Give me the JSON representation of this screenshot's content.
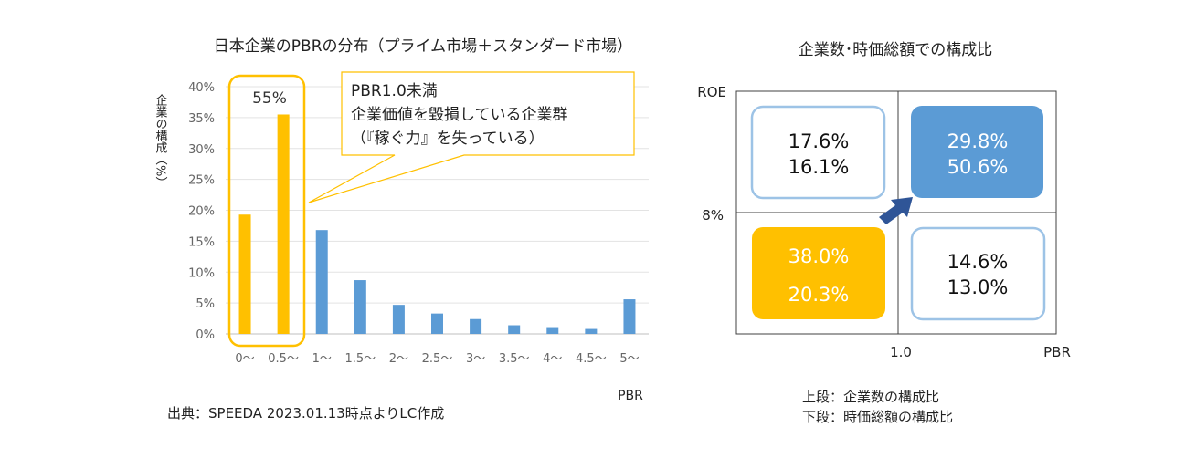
{
  "left_panel": {
    "source": "出典：SPEEDA 2023.01.13時点よりLC作成"
  },
  "right_panel": {
    "title": "企業数･時価総額での構成比",
    "y_axis_label": "ROE",
    "y_threshold_label": "8%",
    "x_threshold_label": "1.0",
    "x_axis_label": "PBR",
    "quadrants": {
      "top_left": {
        "upper": "17.6%",
        "lower": "16.1%"
      },
      "top_right": {
        "upper": "29.8%",
        "lower": "50.6%"
      },
      "bottom_left": {
        "upper": "38.0%",
        "lower": "20.3%"
      },
      "bottom_right": {
        "upper": "14.6%",
        "lower": "13.0%"
      }
    },
    "note_upper": "上段：企業数の構成比",
    "note_lower": "下段：時価総額の構成比"
  },
  "chart_data": {
    "type": "bar",
    "title": "日本企業のPBRの分布（プライム市場＋スタンダード市場）",
    "xlabel": "PBR",
    "ylabel": "企業の構成（%）",
    "ylim": [
      0,
      40
    ],
    "y_ticks": [
      "0%",
      "5%",
      "10%",
      "15%",
      "20%",
      "25%",
      "30%",
      "35%",
      "40%"
    ],
    "grid": true,
    "categories": [
      "0〜",
      "0.5〜",
      "1〜",
      "1.5〜",
      "2〜",
      "2.5〜",
      "3〜",
      "3.5〜",
      "4〜",
      "4.5〜",
      "5〜"
    ],
    "values": [
      19.3,
      35.5,
      16.8,
      8.7,
      4.7,
      3.3,
      2.4,
      1.4,
      1.1,
      0.8,
      5.6
    ],
    "colors": {
      "under_1": "#FFC000",
      "over_1": "#5B9BD5"
    },
    "group_label": "55%",
    "callout_lines": [
      "PBR1.0未満",
      "企業価値を毀損している企業群",
      "（『稼ぐ力』を失っている）"
    ]
  }
}
